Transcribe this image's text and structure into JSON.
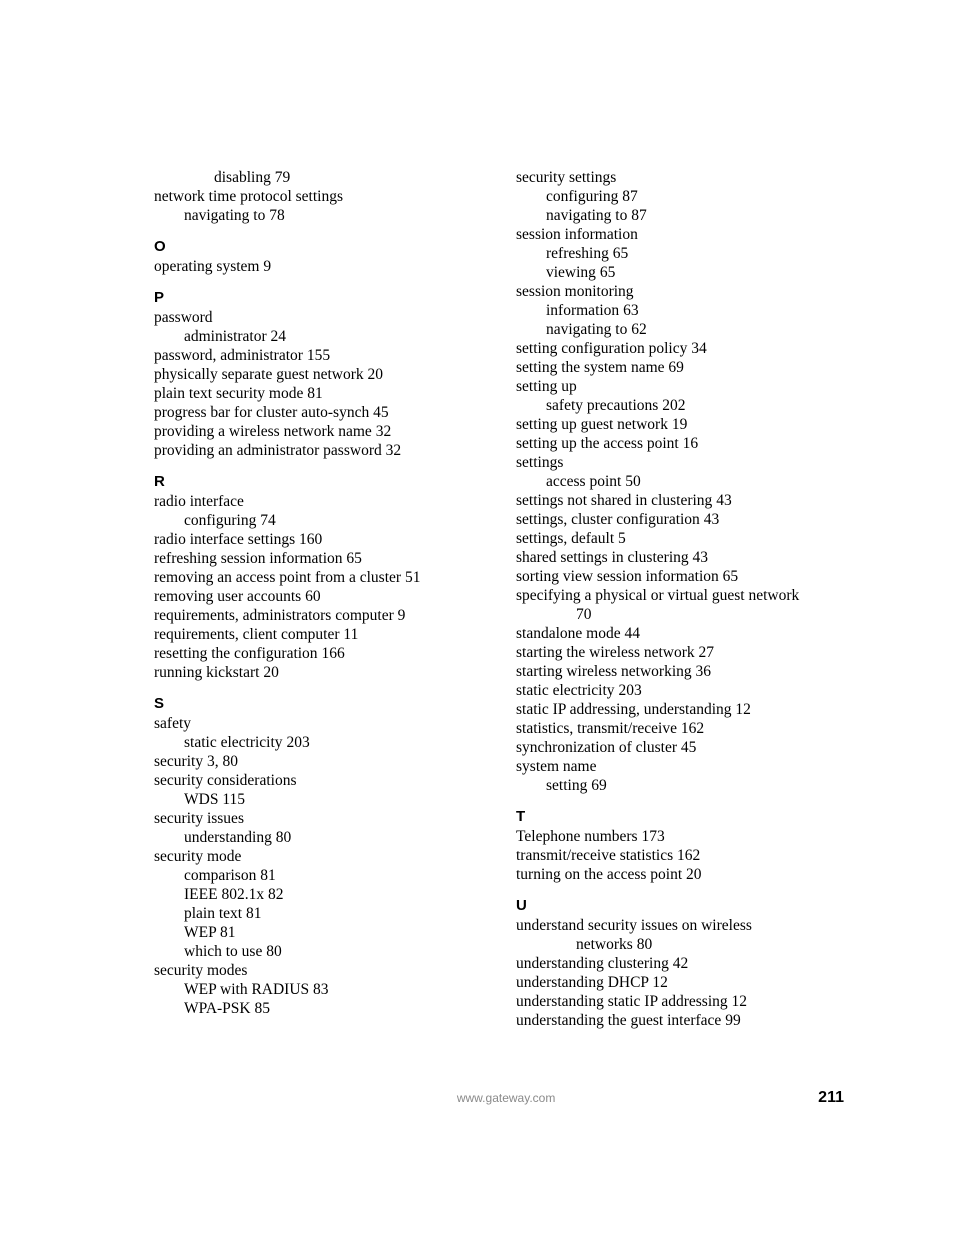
{
  "footer": {
    "url": "www.gateway.com",
    "page": "211"
  },
  "left": {
    "pre": [
      {
        "cls": "sub2",
        "t": "disabling",
        "p": "79"
      },
      {
        "cls": "",
        "t": "network time protocol settings",
        "p": ""
      },
      {
        "cls": "sub",
        "t": "navigating to",
        "p": "78"
      }
    ],
    "O": [
      {
        "cls": "",
        "t": "operating system",
        "p": "9"
      }
    ],
    "P": [
      {
        "cls": "",
        "t": "password",
        "p": ""
      },
      {
        "cls": "sub",
        "t": "administrator",
        "p": "24"
      },
      {
        "cls": "",
        "t": "password, administrator",
        "p": "155"
      },
      {
        "cls": "",
        "t": "physically separate guest network",
        "p": "20"
      },
      {
        "cls": "",
        "t": "plain text security mode",
        "p": "81"
      },
      {
        "cls": "",
        "t": "progress bar for cluster auto-synch",
        "p": "45"
      },
      {
        "cls": "",
        "t": "providing a wireless network name",
        "p": "32"
      },
      {
        "cls": "",
        "t": "providing an administrator password",
        "p": "32"
      }
    ],
    "R": [
      {
        "cls": "",
        "t": "radio interface",
        "p": ""
      },
      {
        "cls": "sub",
        "t": "configuring",
        "p": "74"
      },
      {
        "cls": "",
        "t": "radio interface settings",
        "p": "160"
      },
      {
        "cls": "",
        "t": "refreshing session information",
        "p": "65"
      },
      {
        "cls": "",
        "t": "removing an access point from a cluster",
        "p": "51"
      },
      {
        "cls": "",
        "t": "removing user accounts",
        "p": "60"
      },
      {
        "cls": "",
        "t": "requirements, administrators computer",
        "p": "9"
      },
      {
        "cls": "",
        "t": "requirements, client computer",
        "p": "11"
      },
      {
        "cls": "",
        "t": "resetting the configuration",
        "p": "166"
      },
      {
        "cls": "",
        "t": "running kickstart",
        "p": "20"
      }
    ],
    "S": [
      {
        "cls": "",
        "t": "safety",
        "p": ""
      },
      {
        "cls": "sub",
        "t": "static electricity",
        "p": "203"
      },
      {
        "cls": "",
        "t": "security",
        "p": "3, 80"
      },
      {
        "cls": "",
        "t": "security considerations",
        "p": ""
      },
      {
        "cls": "sub",
        "t": "WDS",
        "p": "115"
      },
      {
        "cls": "",
        "t": "security issues",
        "p": ""
      },
      {
        "cls": "sub",
        "t": "understanding",
        "p": "80"
      },
      {
        "cls": "",
        "t": "security mode",
        "p": ""
      },
      {
        "cls": "sub",
        "t": "comparison",
        "p": "81"
      },
      {
        "cls": "sub",
        "t": "IEEE 802.1x",
        "p": "82"
      },
      {
        "cls": "sub",
        "t": "plain text",
        "p": "81"
      },
      {
        "cls": "sub",
        "t": "WEP",
        "p": "81"
      },
      {
        "cls": "sub",
        "t": "which to use",
        "p": "80"
      },
      {
        "cls": "",
        "t": "security modes",
        "p": ""
      },
      {
        "cls": "sub",
        "t": "WEP with RADIUS",
        "p": "83"
      },
      {
        "cls": "sub",
        "t": "WPA-PSK",
        "p": "85"
      }
    ]
  },
  "right": {
    "pre": [
      {
        "cls": "",
        "t": "security settings",
        "p": ""
      },
      {
        "cls": "sub",
        "t": "configuring",
        "p": "87"
      },
      {
        "cls": "sub",
        "t": "navigating to",
        "p": "87"
      },
      {
        "cls": "",
        "t": "session information",
        "p": ""
      },
      {
        "cls": "sub",
        "t": "refreshing",
        "p": "65"
      },
      {
        "cls": "sub",
        "t": "viewing",
        "p": "65"
      },
      {
        "cls": "",
        "t": "session monitoring",
        "p": ""
      },
      {
        "cls": "sub",
        "t": "information",
        "p": "63"
      },
      {
        "cls": "sub",
        "t": "navigating to",
        "p": "62"
      },
      {
        "cls": "",
        "t": "setting configuration policy",
        "p": "34"
      },
      {
        "cls": "",
        "t": "setting the system name",
        "p": "69"
      },
      {
        "cls": "",
        "t": "setting up",
        "p": ""
      },
      {
        "cls": "sub",
        "t": "safety precautions",
        "p": "202"
      },
      {
        "cls": "",
        "t": "setting up guest network",
        "p": "19"
      },
      {
        "cls": "",
        "t": "setting up the access point",
        "p": "16"
      },
      {
        "cls": "",
        "t": "settings",
        "p": ""
      },
      {
        "cls": "sub",
        "t": "access point",
        "p": "50"
      },
      {
        "cls": "",
        "t": "settings not shared in clustering",
        "p": "43"
      },
      {
        "cls": "",
        "t": "settings, cluster configuration",
        "p": "43"
      },
      {
        "cls": "",
        "t": "settings, default",
        "p": "5"
      },
      {
        "cls": "",
        "t": "shared settings in clustering",
        "p": "43"
      },
      {
        "cls": "",
        "t": "sorting view session information",
        "p": "65"
      },
      {
        "cls": "",
        "t": "specifying a physical or virtual guest network",
        "p": ""
      },
      {
        "cls": "sub2",
        "t": "",
        "p": "70"
      },
      {
        "cls": "",
        "t": "standalone mode",
        "p": "44"
      },
      {
        "cls": "",
        "t": "starting the wireless network",
        "p": "27"
      },
      {
        "cls": "",
        "t": "starting wireless networking",
        "p": "36"
      },
      {
        "cls": "",
        "t": "static electricity",
        "p": "203"
      },
      {
        "cls": "",
        "t": "static IP addressing, understanding",
        "p": "12"
      },
      {
        "cls": "",
        "t": "statistics, transmit/receive",
        "p": "162"
      },
      {
        "cls": "",
        "t": "synchronization of cluster",
        "p": "45"
      },
      {
        "cls": "",
        "t": "system name",
        "p": ""
      },
      {
        "cls": "sub",
        "t": "setting",
        "p": "69"
      }
    ],
    "T": [
      {
        "cls": "",
        "t": "Telephone numbers",
        "p": "173"
      },
      {
        "cls": "",
        "t": "transmit/receive statistics",
        "p": "162"
      },
      {
        "cls": "",
        "t": "turning on the access point",
        "p": "20"
      }
    ],
    "U": [
      {
        "cls": "",
        "t": "understand security issues on wireless",
        "p": ""
      },
      {
        "cls": "sub2",
        "t": "networks",
        "p": "80"
      },
      {
        "cls": "",
        "t": "understanding clustering",
        "p": "42"
      },
      {
        "cls": "",
        "t": "understanding DHCP",
        "p": "12"
      },
      {
        "cls": "",
        "t": "understanding static IP addressing",
        "p": "12"
      },
      {
        "cls": "",
        "t": "understanding the guest interface",
        "p": "99"
      }
    ]
  },
  "letters": {
    "O": "O",
    "P": "P",
    "R": "R",
    "S": "S",
    "T": "T",
    "U": "U"
  }
}
